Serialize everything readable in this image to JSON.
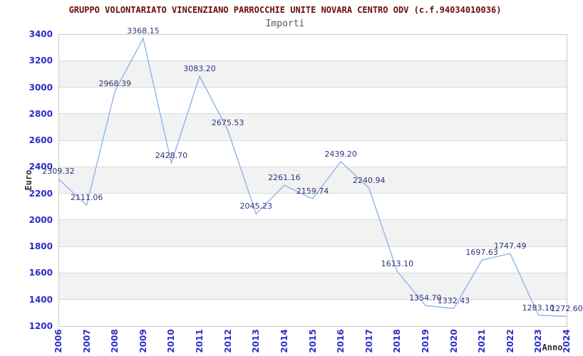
{
  "chart_data": {
    "type": "line",
    "title": "GRUPPO VOLONTARIATO VINCENZIANO PARROCCHIE UNITE NOVARA CENTRO ODV (c.f.94034010036)",
    "subtitle": "Importi",
    "xlabel": "Anno",
    "ylabel": "Euro",
    "categories": [
      "2006",
      "2007",
      "2008",
      "2009",
      "2010",
      "2011",
      "2012",
      "2013",
      "2014",
      "2015",
      "2016",
      "2017",
      "2018",
      "2019",
      "2020",
      "2021",
      "2022",
      "2023",
      "2024"
    ],
    "series": [
      {
        "name": "Importi",
        "values": [
          2309.32,
          2111.06,
          2968.39,
          3368.15,
          2428.7,
          3083.2,
          2675.53,
          2045.23,
          2261.16,
          2159.74,
          2439.2,
          2240.94,
          1613.1,
          1354.7,
          1332.43,
          1697.63,
          1747.49,
          1283.1,
          1272.6
        ]
      }
    ],
    "point_labels_visible": true,
    "point_label_decimals": 2,
    "ylim": [
      1200,
      3400
    ],
    "ytick_step": 200,
    "grid": "horizontal-bands-alternating",
    "legend": "none",
    "colors": {
      "line": "#8fb3ee",
      "title": "#6e0b0b",
      "subtitle": "#5a5a5a",
      "axis_ticks": "#2d2dc8",
      "point_labels": "#32327e",
      "band": "#f2f2f2",
      "gridline": "#d9d9d9",
      "plot_border": "#c9c9c9",
      "axis_titles": "#2e2e2e",
      "background": "#ffffff"
    }
  }
}
